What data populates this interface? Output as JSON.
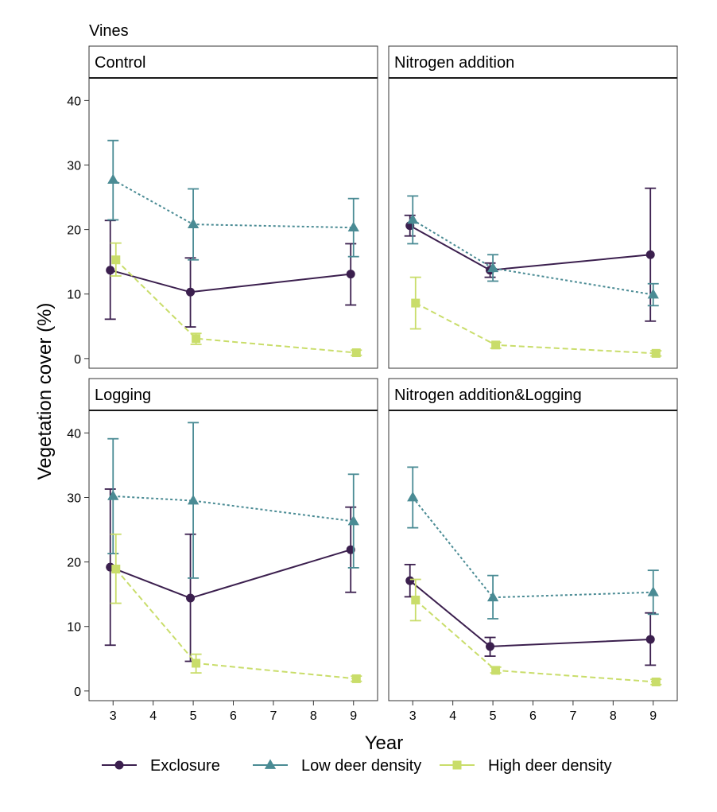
{
  "chart_data": {
    "type": "line",
    "title": "Vines",
    "xlabel": "Year",
    "ylabel": "Vegetation cover (%)",
    "x_ticks": [
      3,
      4,
      5,
      6,
      7,
      8,
      9
    ],
    "y_ticks": [
      0,
      10,
      20,
      30,
      40
    ],
    "xlim": [
      2.4,
      9.6
    ],
    "ylim": [
      -1.5,
      43.5
    ],
    "grid": false,
    "legend_position": "bottom",
    "legend": [
      {
        "name": "Exclosure",
        "color": "#3b1f4e",
        "marker": "circle",
        "line": "solid"
      },
      {
        "name": "Low deer density",
        "color": "#4a8b94",
        "marker": "triangle",
        "line": "dotted"
      },
      {
        "name": "High deer density",
        "color": "#c9dd6a",
        "marker": "square",
        "line": "dashed"
      }
    ],
    "panels": [
      {
        "label": "Control",
        "series": [
          {
            "name": "Exclosure",
            "points": [
              {
                "x": 3,
                "y": 13.7,
                "lo": 6.1,
                "hi": 21.4
              },
              {
                "x": 5,
                "y": 10.3,
                "lo": 4.9,
                "hi": 15.6
              },
              {
                "x": 9,
                "y": 13.1,
                "lo": 8.3,
                "hi": 17.8
              }
            ]
          },
          {
            "name": "Low deer density",
            "points": [
              {
                "x": 3,
                "y": 27.7,
                "lo": 21.5,
                "hi": 33.8
              },
              {
                "x": 5,
                "y": 20.8,
                "lo": 15.3,
                "hi": 26.3
              },
              {
                "x": 9,
                "y": 20.3,
                "lo": 15.8,
                "hi": 24.8
              }
            ]
          },
          {
            "name": "High deer density",
            "points": [
              {
                "x": 3,
                "y": 15.3,
                "lo": 12.8,
                "hi": 17.9
              },
              {
                "x": 5,
                "y": 3.1,
                "lo": 2.2,
                "hi": 3.9
              },
              {
                "x": 9,
                "y": 0.9,
                "lo": 0.5,
                "hi": 1.3
              }
            ]
          }
        ]
      },
      {
        "label": "Nitrogen addition",
        "series": [
          {
            "name": "Exclosure",
            "points": [
              {
                "x": 3,
                "y": 20.6,
                "lo": 19.0,
                "hi": 22.2
              },
              {
                "x": 5,
                "y": 13.7,
                "lo": 12.6,
                "hi": 14.8
              },
              {
                "x": 9,
                "y": 16.1,
                "lo": 5.8,
                "hi": 26.4
              }
            ]
          },
          {
            "name": "Low deer density",
            "points": [
              {
                "x": 3,
                "y": 21.5,
                "lo": 17.8,
                "hi": 25.2
              },
              {
                "x": 5,
                "y": 14.0,
                "lo": 12.0,
                "hi": 16.1
              },
              {
                "x": 9,
                "y": 9.9,
                "lo": 8.2,
                "hi": 11.6
              }
            ]
          },
          {
            "name": "High deer density",
            "points": [
              {
                "x": 3,
                "y": 8.6,
                "lo": 4.6,
                "hi": 12.6
              },
              {
                "x": 5,
                "y": 2.1,
                "lo": 1.6,
                "hi": 2.5
              },
              {
                "x": 9,
                "y": 0.8,
                "lo": 0.4,
                "hi": 1.2
              }
            ]
          }
        ]
      },
      {
        "label": "Logging",
        "series": [
          {
            "name": "Exclosure",
            "points": [
              {
                "x": 3,
                "y": 19.2,
                "lo": 7.1,
                "hi": 31.3
              },
              {
                "x": 5,
                "y": 14.4,
                "lo": 4.6,
                "hi": 24.3
              },
              {
                "x": 9,
                "y": 21.9,
                "lo": 15.3,
                "hi": 28.5
              }
            ]
          },
          {
            "name": "Low deer density",
            "points": [
              {
                "x": 3,
                "y": 30.2,
                "lo": 21.3,
                "hi": 39.1
              },
              {
                "x": 5,
                "y": 29.5,
                "lo": 17.5,
                "hi": 41.6
              },
              {
                "x": 9,
                "y": 26.3,
                "lo": 19.1,
                "hi": 33.6
              }
            ]
          },
          {
            "name": "High deer density",
            "points": [
              {
                "x": 3,
                "y": 18.9,
                "lo": 13.6,
                "hi": 24.3
              },
              {
                "x": 5,
                "y": 4.3,
                "lo": 2.8,
                "hi": 5.7
              },
              {
                "x": 9,
                "y": 1.9,
                "lo": 1.5,
                "hi": 2.3
              }
            ]
          }
        ]
      },
      {
        "label": "Nitrogen addition&Logging",
        "series": [
          {
            "name": "Exclosure",
            "points": [
              {
                "x": 3,
                "y": 17.1,
                "lo": 14.6,
                "hi": 19.6
              },
              {
                "x": 5,
                "y": 6.9,
                "lo": 5.4,
                "hi": 8.3
              },
              {
                "x": 9,
                "y": 8.0,
                "lo": 4.0,
                "hi": 12.1
              }
            ]
          },
          {
            "name": "Low deer density",
            "points": [
              {
                "x": 3,
                "y": 30.0,
                "lo": 25.3,
                "hi": 34.7
              },
              {
                "x": 5,
                "y": 14.5,
                "lo": 11.2,
                "hi": 17.9
              },
              {
                "x": 9,
                "y": 15.3,
                "lo": 11.9,
                "hi": 18.7
              }
            ]
          },
          {
            "name": "High deer density",
            "points": [
              {
                "x": 3,
                "y": 14.1,
                "lo": 10.9,
                "hi": 17.3
              },
              {
                "x": 5,
                "y": 3.2,
                "lo": 2.8,
                "hi": 3.7
              },
              {
                "x": 9,
                "y": 1.4,
                "lo": 1.0,
                "hi": 1.8
              }
            ]
          }
        ]
      }
    ]
  }
}
